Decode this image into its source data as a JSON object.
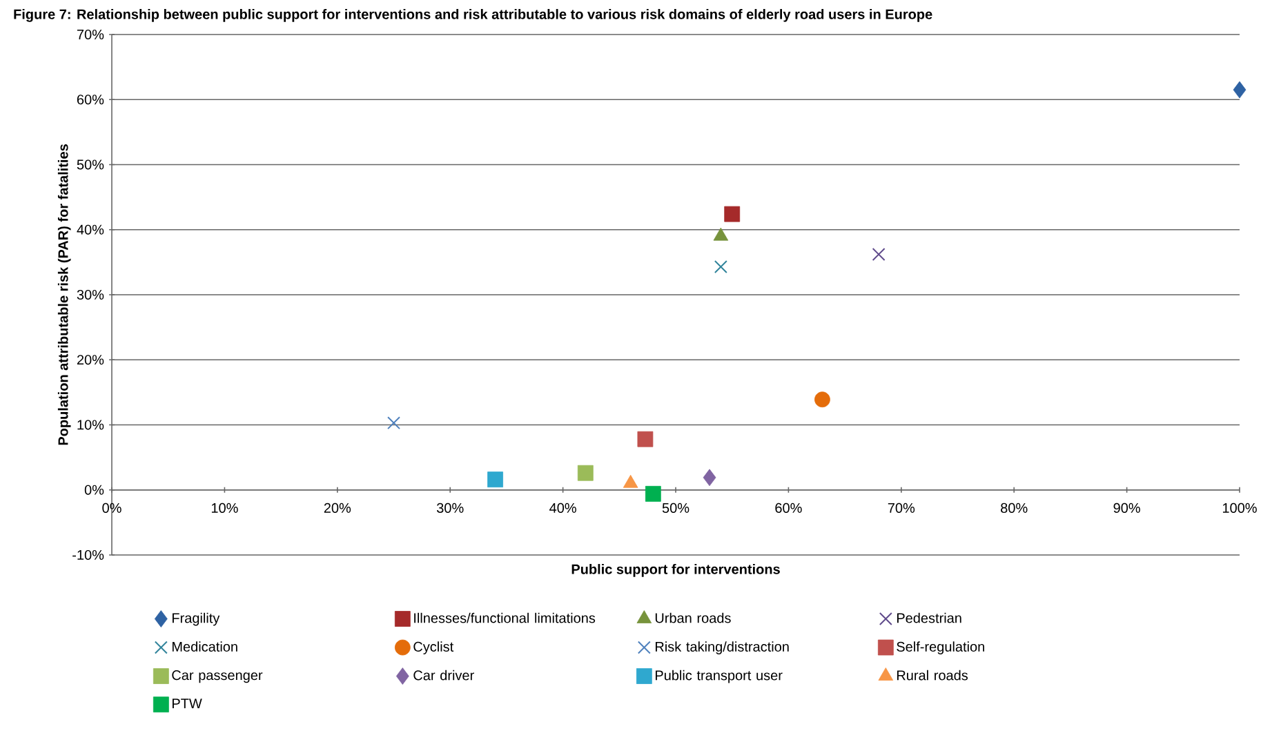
{
  "chart_data": {
    "type": "scatter",
    "title": "Figure 7: Relationship between public support for interventions and risk attributable to various risk domains of elderly road users in Europe",
    "xlabel": "Public support for interventions",
    "ylabel": "Population attributable risk (PAR) for fatalities",
    "xlim": [
      0,
      100
    ],
    "ylim": [
      -10,
      70
    ],
    "xticks": [
      {
        "value": 0,
        "label": "0%"
      },
      {
        "value": 10,
        "label": "10%"
      },
      {
        "value": 20,
        "label": "20%"
      },
      {
        "value": 30,
        "label": "30%"
      },
      {
        "value": 40,
        "label": "40%"
      },
      {
        "value": 50,
        "label": "50%"
      },
      {
        "value": 60,
        "label": "60%"
      },
      {
        "value": 70,
        "label": "70%"
      },
      {
        "value": 80,
        "label": "80%"
      },
      {
        "value": 90,
        "label": "90%"
      },
      {
        "value": 100,
        "label": "100%"
      }
    ],
    "yticks": [
      {
        "value": -10,
        "label": "-10%"
      },
      {
        "value": 0,
        "label": "0%"
      },
      {
        "value": 10,
        "label": "10%"
      },
      {
        "value": 20,
        "label": "20%"
      },
      {
        "value": 30,
        "label": "30%"
      },
      {
        "value": 40,
        "label": "40%"
      },
      {
        "value": 50,
        "label": "50%"
      },
      {
        "value": 60,
        "label": "60%"
      },
      {
        "value": 70,
        "label": "70%"
      }
    ],
    "grid": "y",
    "legend": "bottom",
    "series": [
      {
        "name": "Fragility",
        "color": "#2e62a3",
        "marker": "diamond",
        "x": [
          100
        ],
        "values": [
          61.5
        ]
      },
      {
        "name": "Illnesses/functional limitations",
        "color": "#a52a2a",
        "marker": "square",
        "x": [
          55
        ],
        "values": [
          42.4
        ]
      },
      {
        "name": "Urban roads",
        "color": "#77933c",
        "marker": "triangle",
        "x": [
          54
        ],
        "values": [
          39
        ]
      },
      {
        "name": "Pedestrian",
        "color": "#5f4a8b",
        "marker": "cross",
        "x": [
          68
        ],
        "values": [
          36.2
        ]
      },
      {
        "name": "Medication",
        "color": "#31849b",
        "marker": "cross",
        "x": [
          54
        ],
        "values": [
          34.3
        ]
      },
      {
        "name": "Cyclist",
        "color": "#e46c0a",
        "marker": "circle",
        "x": [
          63
        ],
        "values": [
          13.9
        ]
      },
      {
        "name": "Risk taking/distraction",
        "color": "#4f81bd",
        "marker": "cross",
        "x": [
          25
        ],
        "values": [
          10.3
        ]
      },
      {
        "name": "Self-regulation",
        "color": "#c0504d",
        "marker": "square",
        "x": [
          47.3
        ],
        "values": [
          7.8
        ]
      },
      {
        "name": "Car passenger",
        "color": "#9bbb59",
        "marker": "square",
        "x": [
          42
        ],
        "values": [
          2.6
        ]
      },
      {
        "name": "Car driver",
        "color": "#8064a2",
        "marker": "diamond",
        "x": [
          53
        ],
        "values": [
          1.9
        ]
      },
      {
        "name": "Public transport user",
        "color": "#2fa8cf",
        "marker": "square",
        "x": [
          34
        ],
        "values": [
          1.6
        ]
      },
      {
        "name": "Rural roads",
        "color": "#f79646",
        "marker": "triangle",
        "x": [
          46
        ],
        "values": [
          1.0
        ]
      },
      {
        "name": "PTW",
        "color": "#00b050",
        "marker": "square",
        "x": [
          48
        ],
        "values": [
          -0.6
        ]
      }
    ]
  }
}
